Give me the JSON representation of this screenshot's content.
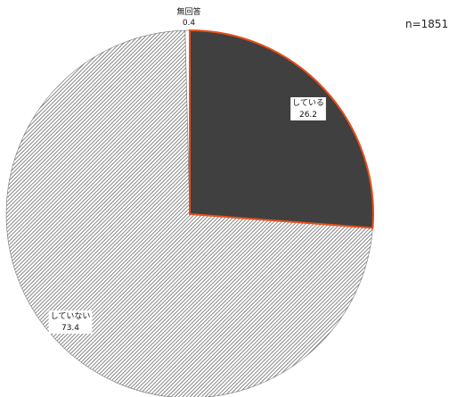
{
  "sample_size": "n=1851",
  "chart_data": {
    "type": "pie",
    "start_angle_deg": 0,
    "direction": "clockwise",
    "slices": [
      {
        "label": "している",
        "value": 26.2,
        "display": "26.2",
        "style": "solid-dark",
        "color": "#404040",
        "outline": "#e8501a"
      },
      {
        "label": "していない",
        "value": 73.4,
        "display": "73.4",
        "style": "hatched",
        "color": "#ffffff"
      },
      {
        "label": "無回答",
        "value": 0.4,
        "display": "0.4",
        "style": "solid",
        "color": "#ffffff"
      }
    ]
  }
}
